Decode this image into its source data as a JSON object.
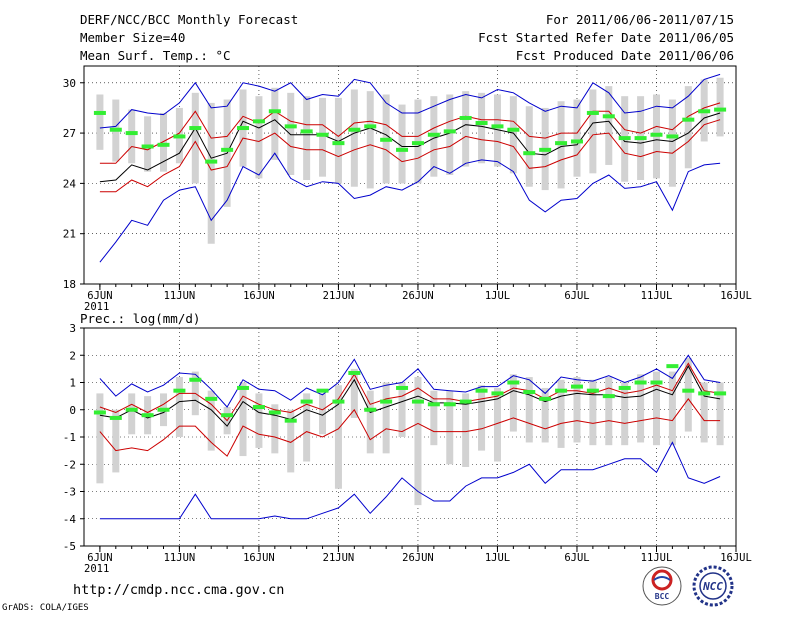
{
  "header": {
    "title": "DERF/NCC/BCC Monthly Forecast",
    "member_size": "Member Size=40",
    "variable": "Mean Surf. Temp.: °C",
    "period": "For 2011/06/06-2011/07/15",
    "refer_date": "Fcst Started Refer Date 2011/06/05",
    "produced_date": "Fcst Produced Date 2011/06/06"
  },
  "x_ticks": [
    "6JUN",
    "11JUN",
    "16JUN",
    "21JUN",
    "26JUN",
    "1JUL",
    "6JUL",
    "11JUL",
    "16JUL"
  ],
  "x_year": "2011",
  "footer": {
    "url": "http://cmdp.ncc.cma.gov.cn",
    "credit": "GrADS: COLA/IGES",
    "logo1": "BCC",
    "logo2": "NCC"
  },
  "colors": {
    "bar": "#d2d2d2",
    "mean": "#33ee33",
    "envelope": "#0000cc",
    "spread": "#cc0000",
    "median": "#000000"
  },
  "chart_data": [
    {
      "type": "line",
      "title": "Mean Surf. Temp.: °C",
      "ylim": [
        18,
        31
      ],
      "yticks": [
        18,
        21,
        24,
        27,
        30
      ],
      "x_days": "day index 0 = 6JUN ... 39 = 15JUL",
      "max": [
        27.3,
        27.4,
        28.4,
        28.2,
        28.1,
        28.8,
        30.0,
        28.5,
        28.6,
        30.0,
        29.8,
        29.5,
        30.0,
        29.0,
        29.3,
        29.2,
        30.2,
        30.0,
        28.8,
        28.2,
        28.2,
        28.6,
        29.0,
        29.3,
        29.1,
        29.6,
        29.4,
        28.8,
        28.3,
        28.6,
        28.5,
        30.0,
        29.4,
        28.2,
        28.3,
        28.6,
        28.5,
        29.2,
        30.2,
        30.5
      ],
      "upper": [
        25.2,
        25.2,
        26.2,
        26.0,
        26.5,
        27.0,
        28.3,
        26.7,
        26.8,
        28.0,
        27.6,
        28.3,
        27.7,
        27.5,
        27.5,
        26.8,
        27.6,
        27.7,
        27.5,
        26.8,
        26.8,
        27.3,
        27.7,
        28.0,
        27.8,
        27.8,
        27.7,
        26.8,
        26.7,
        27.0,
        27.0,
        28.3,
        28.3,
        27.2,
        27.0,
        27.4,
        27.2,
        28.0,
        28.5,
        28.8
      ],
      "median": [
        24.1,
        24.2,
        25.1,
        24.8,
        25.3,
        25.8,
        27.3,
        25.5,
        25.8,
        27.7,
        27.3,
        27.8,
        26.9,
        26.9,
        26.9,
        26.5,
        27.0,
        27.3,
        26.9,
        26.2,
        26.2,
        26.7,
        27.0,
        27.5,
        27.4,
        27.2,
        27.0,
        25.8,
        25.7,
        26.2,
        26.3,
        27.6,
        27.7,
        26.5,
        26.4,
        26.6,
        26.5,
        27.0,
        27.9,
        28.2
      ],
      "lower": [
        23.5,
        23.5,
        24.2,
        23.8,
        24.5,
        25.0,
        26.5,
        24.8,
        25.0,
        26.7,
        26.5,
        27.0,
        26.2,
        26.0,
        26.0,
        25.6,
        26.0,
        26.3,
        26.0,
        25.3,
        25.5,
        26.0,
        26.2,
        26.8,
        26.6,
        26.5,
        26.2,
        24.9,
        25.0,
        25.4,
        25.7,
        26.9,
        27.0,
        25.8,
        25.6,
        25.9,
        25.8,
        26.5,
        27.5,
        27.8
      ],
      "min": [
        19.3,
        20.5,
        21.8,
        21.5,
        23.0,
        23.6,
        23.8,
        21.8,
        23.0,
        25.0,
        24.5,
        25.8,
        24.3,
        23.8,
        24.1,
        24.0,
        23.1,
        23.3,
        23.8,
        23.6,
        24.1,
        25.0,
        24.6,
        25.2,
        25.4,
        25.3,
        24.7,
        23.0,
        22.3,
        23.0,
        23.1,
        24.0,
        24.5,
        23.7,
        23.8,
        24.1,
        22.4,
        24.7,
        25.1,
        25.2
      ],
      "ens_mean": [
        28.2,
        27.2,
        27.0,
        26.2,
        26.3,
        26.8,
        27.3,
        25.3,
        26.0,
        27.3,
        27.7,
        28.3,
        27.4,
        27.1,
        26.9,
        26.4,
        27.2,
        27.4,
        26.6,
        26.0,
        26.4,
        26.9,
        27.1,
        27.9,
        27.6,
        27.4,
        27.2,
        25.8,
        26.0,
        26.4,
        26.5,
        28.2,
        28.0,
        26.7,
        26.7,
        26.9,
        26.8,
        27.8,
        28.3,
        28.4
      ],
      "bar_top": [
        29.3,
        29.0,
        28.4,
        28.0,
        28.2,
        28.5,
        29.4,
        28.8,
        29.0,
        29.6,
        29.2,
        29.7,
        29.4,
        29.2,
        29.1,
        29.1,
        29.6,
        29.5,
        29.3,
        28.7,
        29.0,
        29.2,
        29.3,
        29.5,
        29.4,
        29.3,
        29.2,
        28.6,
        28.5,
        28.9,
        29.0,
        29.6,
        29.8,
        29.2,
        29.2,
        29.3,
        29.0,
        29.8,
        30.2,
        30.3
      ],
      "bar_bottom": [
        26.0,
        25.3,
        25.2,
        24.7,
        24.7,
        25.2,
        24.0,
        20.4,
        22.6,
        25.0,
        24.3,
        25.4,
        24.5,
        24.2,
        24.4,
        24.0,
        23.8,
        23.7,
        24.0,
        24.0,
        24.0,
        24.4,
        24.5,
        25.0,
        25.2,
        25.0,
        24.6,
        23.8,
        23.6,
        23.7,
        24.4,
        24.6,
        25.1,
        24.1,
        24.2,
        24.3,
        23.8,
        24.9,
        26.5,
        26.8
      ]
    },
    {
      "type": "line",
      "title": "Prec.: log(mm/d)",
      "ylim": [
        -5,
        3
      ],
      "yticks": [
        -5,
        -4,
        -3,
        -2,
        -1,
        0,
        1,
        2,
        3
      ],
      "max": [
        1.15,
        0.5,
        0.95,
        0.65,
        0.9,
        1.35,
        1.3,
        0.75,
        0.1,
        1.1,
        0.75,
        0.7,
        0.35,
        0.8,
        0.55,
        1.0,
        1.85,
        0.75,
        0.9,
        1.0,
        1.5,
        0.75,
        0.7,
        0.65,
        0.85,
        0.85,
        1.25,
        1.1,
        0.6,
        1.2,
        1.1,
        1.05,
        1.25,
        1.0,
        1.2,
        1.5,
        1.15,
        2.0,
        1.1,
        1.0
      ],
      "upper": [
        0.1,
        -0.1,
        0.2,
        -0.1,
        0.2,
        0.6,
        0.6,
        0.2,
        -0.4,
        0.5,
        0.2,
        0.0,
        -0.1,
        0.2,
        0.0,
        0.4,
        1.3,
        0.2,
        0.4,
        0.5,
        0.8,
        0.4,
        0.4,
        0.3,
        0.4,
        0.5,
        0.8,
        0.7,
        0.4,
        0.7,
        0.7,
        0.6,
        0.8,
        0.6,
        0.7,
        0.9,
        0.7,
        1.7,
        0.7,
        0.6
      ],
      "median": [
        -0.2,
        -0.3,
        0.0,
        -0.3,
        -0.1,
        0.3,
        0.35,
        0.0,
        -0.6,
        0.3,
        -0.1,
        -0.2,
        -0.35,
        0.0,
        -0.2,
        0.2,
        1.1,
        -0.1,
        0.1,
        0.3,
        0.5,
        0.25,
        0.25,
        0.2,
        0.3,
        0.4,
        0.7,
        0.55,
        0.3,
        0.5,
        0.6,
        0.55,
        0.55,
        0.45,
        0.5,
        0.75,
        0.55,
        1.6,
        0.5,
        0.4
      ],
      "lower": [
        -0.8,
        -1.5,
        -1.4,
        -1.5,
        -1.1,
        -0.6,
        -0.6,
        -1.2,
        -1.7,
        -0.6,
        -0.9,
        -1.0,
        -1.2,
        -0.8,
        -1.0,
        -0.7,
        0.0,
        -1.1,
        -0.7,
        -0.8,
        -0.5,
        -0.8,
        -0.8,
        -0.8,
        -0.7,
        -0.5,
        -0.3,
        -0.5,
        -0.7,
        -0.5,
        -0.4,
        -0.5,
        -0.4,
        -0.5,
        -0.4,
        -0.3,
        -0.4,
        0.4,
        -0.4,
        -0.4
      ],
      "min": [
        -4.0,
        -4.0,
        -4.0,
        -4.0,
        -4.0,
        -4.0,
        -3.1,
        -4.0,
        -4.0,
        -4.0,
        -4.0,
        -3.9,
        -4.0,
        -4.0,
        -3.8,
        -3.6,
        -3.1,
        -3.8,
        -3.2,
        -2.5,
        -3.0,
        -3.35,
        -3.35,
        -2.8,
        -2.5,
        -2.5,
        -2.3,
        -2.0,
        -2.7,
        -2.2,
        -2.2,
        -2.2,
        -2.0,
        -1.8,
        -1.8,
        -2.3,
        -1.2,
        -2.5,
        -2.7,
        -2.45
      ],
      "ens_mean": [
        -0.1,
        -0.3,
        0.0,
        -0.2,
        0.0,
        0.7,
        1.1,
        0.4,
        -0.2,
        0.8,
        0.1,
        -0.1,
        -0.4,
        0.3,
        0.7,
        0.3,
        1.35,
        0.0,
        0.3,
        0.8,
        0.3,
        0.2,
        0.2,
        0.3,
        0.7,
        0.6,
        1.0,
        0.65,
        0.4,
        0.7,
        0.85,
        0.7,
        0.5,
        0.8,
        1.0,
        1.0,
        1.6,
        0.7,
        0.6,
        0.6
      ],
      "bar_top": [
        0.6,
        0.0,
        0.6,
        0.5,
        0.6,
        1.2,
        1.4,
        0.7,
        0.1,
        1.0,
        0.6,
        0.2,
        0.0,
        0.6,
        0.6,
        0.9,
        1.5,
        0.7,
        1.0,
        1.0,
        1.2,
        0.7,
        0.7,
        0.6,
        0.9,
        0.8,
        1.3,
        1.2,
        0.8,
        1.1,
        1.2,
        1.1,
        1.2,
        1.0,
        1.3,
        1.4,
        1.4,
        1.9,
        1.0,
        1.0
      ],
      "bar_bottom": [
        -2.7,
        -2.3,
        -0.9,
        -0.9,
        -0.6,
        -1.0,
        -0.2,
        -1.5,
        -0.9,
        -1.7,
        -1.4,
        -1.6,
        -2.3,
        -1.9,
        -0.9,
        -2.9,
        -0.3,
        -1.6,
        -1.6,
        -1.0,
        -3.5,
        -1.3,
        -2.0,
        -2.1,
        -1.5,
        -1.9,
        -0.8,
        -1.2,
        -1.2,
        -1.4,
        -1.2,
        -1.3,
        -1.3,
        -1.3,
        -1.2,
        -1.3,
        -1.3,
        -0.8,
        -1.2,
        -1.3
      ]
    }
  ]
}
